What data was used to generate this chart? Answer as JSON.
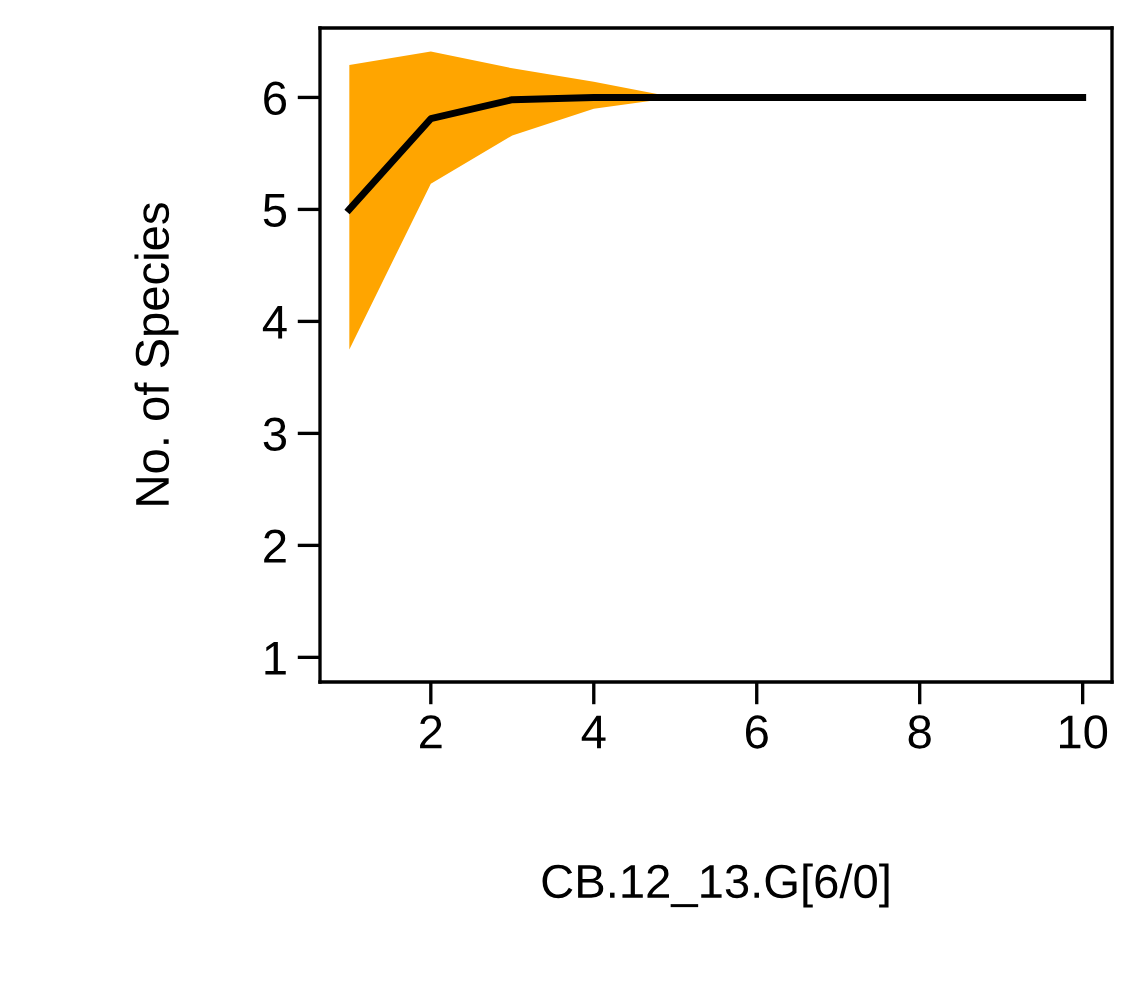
{
  "chart_data": {
    "type": "line",
    "xlabel": "CB.12_13.G[6/0]",
    "ylabel": "No. of Species",
    "x": [
      1,
      2,
      3,
      4,
      5,
      6,
      7,
      8,
      9,
      10
    ],
    "series": [
      {
        "color": "#000000",
        "values": [
          5.0,
          5.81,
          5.98,
          6.0,
          6.0,
          6.0,
          6.0,
          6.0,
          6.0,
          6.0
        ],
        "lower": [
          3.75,
          5.23,
          5.66,
          5.9,
          6.0,
          6.0,
          6.0,
          6.0,
          6.0,
          6.0
        ],
        "upper": [
          6.29,
          6.41,
          6.26,
          6.14,
          6.0,
          6.0,
          6.0,
          6.0,
          6.0,
          6.0
        ]
      }
    ],
    "xlim": [
      0.64,
      10.36
    ],
    "ylim": [
      0.78,
      6.62
    ],
    "xticks": [
      2,
      4,
      6,
      8,
      10
    ],
    "yticks": [
      1,
      2,
      3,
      4,
      5,
      6
    ],
    "grid": false,
    "legend": false,
    "marker": "none",
    "line_style": "solid"
  }
}
